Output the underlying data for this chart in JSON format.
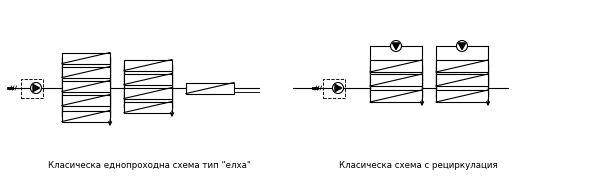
{
  "title1": "Класическа еднопроходна схема тип \"елха\"",
  "title2": "Класическа схема с рециркулация",
  "bg_color": "#ffffff",
  "line_color": "#000000",
  "lw": 0.8,
  "figsize": [
    6.15,
    1.76
  ],
  "dpi": 100
}
